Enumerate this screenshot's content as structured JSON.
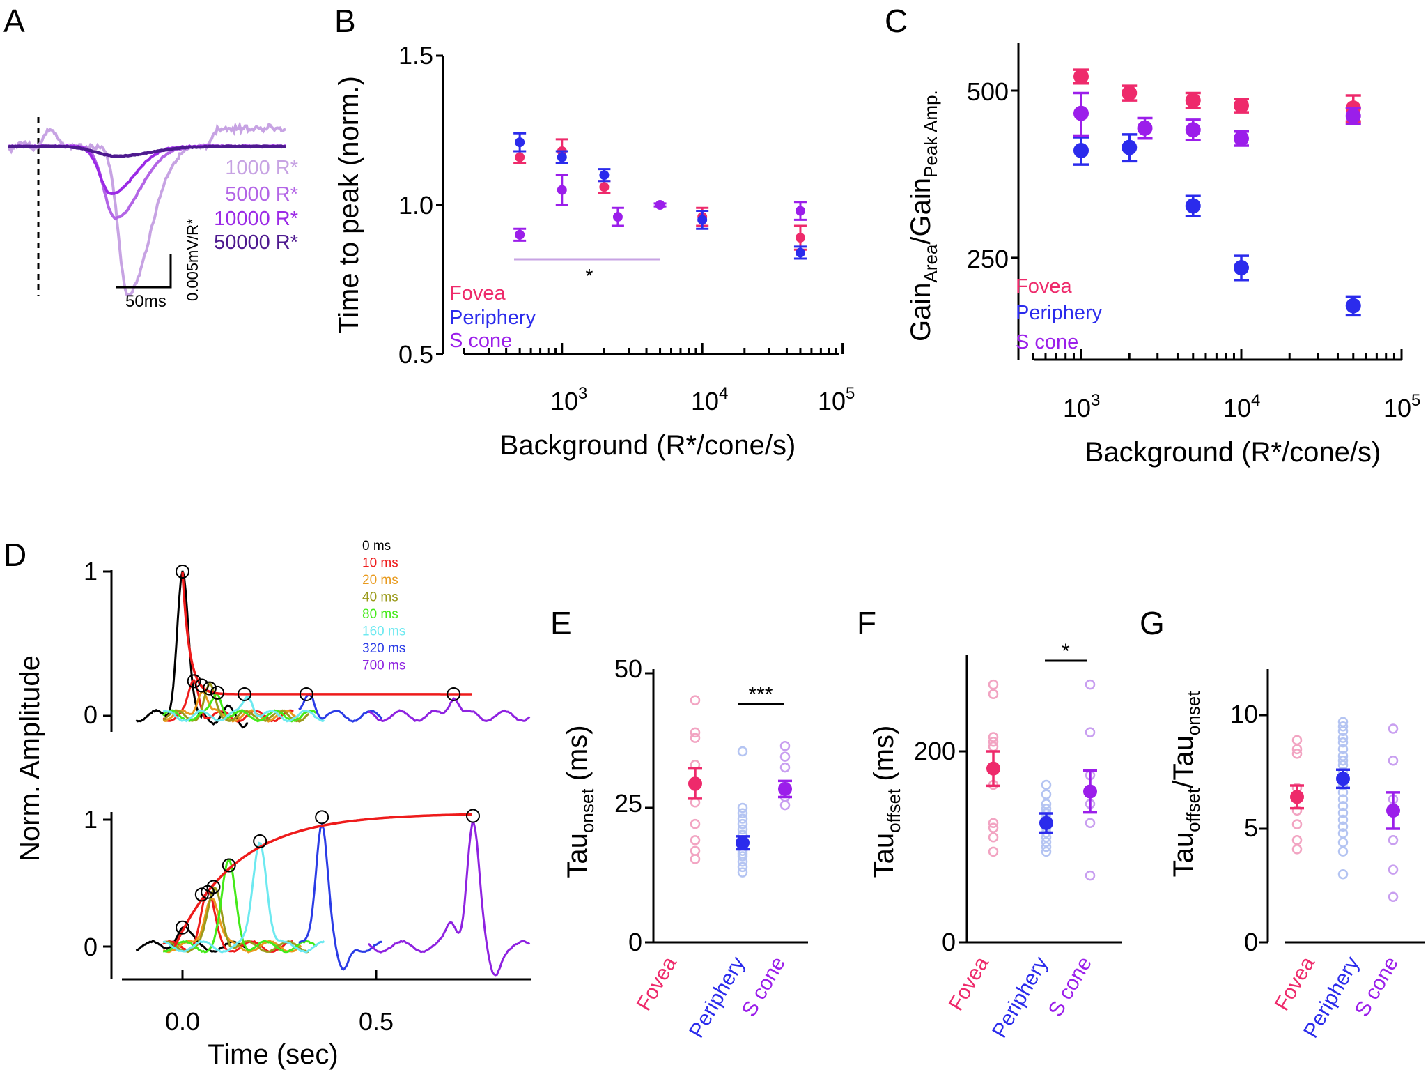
{
  "colors": {
    "fovea": "#ee2a6b",
    "periphery": "#2b2bec",
    "scone": "#9b1eea",
    "fovea_light": "#f2a4c2",
    "periphery_light": "#b4c4f2",
    "scone_light": "#c89ef0",
    "c1000": "#c7a3e3",
    "c5000": "#b365e6",
    "c10000": "#9b2ae6",
    "c50000": "#4e1a8f",
    "d0": "#000000",
    "d10": "#ee1b1b",
    "d20": "#e89a1e",
    "d40": "#9a9a1a",
    "d80": "#44ea1a",
    "d160": "#6de9f0",
    "d320": "#2b3ce6",
    "d700": "#8e22e0"
  },
  "panels": {
    "A": "A",
    "B": "B",
    "C": "C",
    "D": "D",
    "E": "E",
    "F": "F",
    "G": "G"
  },
  "panelA": {
    "legend": [
      "1000 R*",
      "5000 R*",
      "10000 R*",
      "50000 R*"
    ],
    "scale_x": "50ms",
    "scale_y": "0.005mV/R*"
  },
  "panelB": {
    "ylabel": "Time to peak (norm.)",
    "xlabel": "Background (R*/cone/s)",
    "yticks": [
      "1.5",
      "1.0",
      "0.5"
    ],
    "legend": [
      "Fovea",
      "Periphery",
      "S cone"
    ],
    "sig": "*"
  },
  "panelC": {
    "ylabel_main": "Gain",
    "ylabel_sub1": "Area",
    "ylabel_mid": "/Gain",
    "ylabel_sub2": "Peak Amp.",
    "xlabel": "Background (R*/cone/s)",
    "yticks": [
      "500",
      "250"
    ],
    "legend": [
      "Fovea",
      "Periphery",
      "S cone"
    ]
  },
  "panelD": {
    "ylabel": "Norm. Amplitude",
    "xlabel": "Time (sec)",
    "yticks": [
      "1",
      "0"
    ],
    "xticks": [
      "0.0",
      "0.5"
    ],
    "legend": [
      "0 ms",
      "10 ms",
      "20 ms",
      "40 ms",
      "80 ms",
      "160 ms",
      "320 ms",
      "700 ms"
    ]
  },
  "panelE": {
    "ylabel_main": "Tau",
    "ylabel_sub": "onset",
    "ylabel_unit": " (ms)",
    "yticks": [
      "50",
      "25",
      "0"
    ],
    "categories": [
      "Fovea",
      "Periphery",
      "S cone"
    ],
    "sig": "***"
  },
  "panelF": {
    "ylabel_main": "Tau",
    "ylabel_sub": "offset",
    "ylabel_unit": " (ms)",
    "yticks": [
      "200",
      "0"
    ],
    "categories": [
      "Fovea",
      "Periphery",
      "S cone"
    ],
    "sig": "*"
  },
  "panelG": {
    "ylabel_main": "Tau",
    "ylabel_sub1": "offset",
    "ylabel_mid": "/Tau",
    "ylabel_sub2": "onset",
    "yticks": [
      "10",
      "5",
      "0"
    ],
    "categories": [
      "Fovea",
      "Periphery",
      "S cone"
    ]
  },
  "chart_data": [
    {
      "panel": "A",
      "type": "line",
      "series": [
        {
          "name": "1000 R*"
        },
        {
          "name": "5000 R*"
        },
        {
          "name": "10000 R*"
        },
        {
          "name": "50000 R*"
        }
      ]
    },
    {
      "panel": "B",
      "type": "scatter",
      "xscale": "log",
      "xlim": [
        200,
        100000
      ],
      "ylim": [
        0.5,
        1.5
      ],
      "xlabel": "Background (R*/cone/s)",
      "ylabel": "Time to peak (norm.)",
      "series": [
        {
          "name": "Fovea",
          "points": [
            {
              "x": 500,
              "y": 1.16,
              "err": 0.02
            },
            {
              "x": 1000,
              "y": 1.18,
              "err": 0.04
            },
            {
              "x": 2000,
              "y": 1.06,
              "err": 0.02
            },
            {
              "x": 10000,
              "y": 0.96,
              "err": 0.03
            },
            {
              "x": 50000,
              "y": 0.89,
              "err": 0.04
            }
          ]
        },
        {
          "name": "Periphery",
          "points": [
            {
              "x": 500,
              "y": 1.21,
              "err": 0.03
            },
            {
              "x": 1000,
              "y": 1.16,
              "err": 0.02
            },
            {
              "x": 2000,
              "y": 1.1,
              "err": 0.02
            },
            {
              "x": 10000,
              "y": 0.95,
              "err": 0.03
            },
            {
              "x": 50000,
              "y": 0.84,
              "err": 0.02
            }
          ]
        },
        {
          "name": "S cone",
          "points": [
            {
              "x": 500,
              "y": 0.9,
              "err": 0.02
            },
            {
              "x": 1000,
              "y": 1.05,
              "err": 0.05
            },
            {
              "x": 2500,
              "y": 0.96,
              "err": 0.03
            },
            {
              "x": 5000,
              "y": 1.0,
              "err": 0.005
            },
            {
              "x": 50000,
              "y": 0.98,
              "err": 0.03
            }
          ]
        }
      ]
    },
    {
      "panel": "C",
      "type": "scatter",
      "xscale": "log",
      "xlim": [
        500,
        100000
      ],
      "ylim": [
        140,
        560
      ],
      "xlabel": "Background (R*/cone/s)",
      "series": [
        {
          "name": "Fovea",
          "points": [
            {
              "x": 1000,
              "y": 530,
              "err": 15
            },
            {
              "x": 2000,
              "y": 495,
              "err": 15
            },
            {
              "x": 5000,
              "y": 480,
              "err": 15
            },
            {
              "x": 10000,
              "y": 470,
              "err": 13
            },
            {
              "x": 50000,
              "y": 465,
              "err": 25
            }
          ]
        },
        {
          "name": "Periphery",
          "points": [
            {
              "x": 1000,
              "y": 390,
              "err": 22
            },
            {
              "x": 2000,
              "y": 395,
              "err": 22
            },
            {
              "x": 5000,
              "y": 310,
              "err": 13
            },
            {
              "x": 10000,
              "y": 240,
              "err": 12
            },
            {
              "x": 50000,
              "y": 205,
              "err": 8
            }
          ]
        },
        {
          "name": "S cone",
          "points": [
            {
              "x": 1000,
              "y": 455,
              "err": 40
            },
            {
              "x": 2500,
              "y": 428,
              "err": 18
            },
            {
              "x": 5000,
              "y": 425,
              "err": 18
            },
            {
              "x": 10000,
              "y": 410,
              "err": 12
            },
            {
              "x": 50000,
              "y": 450,
              "err": 15
            }
          ]
        }
      ]
    },
    {
      "panel": "D",
      "type": "line",
      "xlim": [
        -0.15,
        0.9
      ],
      "xlabel": "Time (sec)",
      "ylabel": "Norm. Amplitude",
      "series": [
        {
          "name": "0 ms"
        },
        {
          "name": "10 ms"
        },
        {
          "name": "20 ms"
        },
        {
          "name": "40 ms"
        },
        {
          "name": "80 ms"
        },
        {
          "name": "160 ms"
        },
        {
          "name": "320 ms"
        },
        {
          "name": "700 ms"
        }
      ]
    },
    {
      "panel": "E",
      "type": "scatter",
      "ylim": [
        0,
        50
      ],
      "categories": [
        "Fovea",
        "Periphery",
        "S cone"
      ],
      "means": [
        29.5,
        18.5,
        28.5
      ],
      "errs": [
        2.8,
        1.2,
        1.5
      ],
      "points": [
        [
          45,
          39,
          38,
          33,
          29,
          26,
          22,
          19,
          17,
          15.5
        ],
        [
          35.5,
          25,
          24,
          23,
          22,
          21,
          20,
          19,
          18,
          17,
          16.5,
          16,
          15,
          14,
          13
        ],
        [
          36.5,
          34.5,
          32.5,
          29,
          27,
          25.5
        ]
      ]
    },
    {
      "panel": "F",
      "type": "scatter",
      "ylim": [
        0,
        300
      ],
      "categories": [
        "Fovea",
        "Periphery",
        "S cone"
      ],
      "means": [
        182,
        125,
        158
      ],
      "errs": [
        18,
        10,
        22
      ],
      "points": [
        [
          270,
          260,
          215,
          210,
          205,
          180,
          165,
          125,
          120,
          110,
          95
        ],
        [
          165,
          155,
          145,
          140,
          135,
          130,
          125,
          120,
          115,
          110,
          105,
          100,
          95
        ],
        [
          270,
          220,
          175,
          145,
          125,
          70
        ]
      ]
    },
    {
      "panel": "G",
      "type": "scatter",
      "ylim": [
        0,
        12
      ],
      "categories": [
        "Fovea",
        "Periphery",
        "S cone"
      ],
      "means": [
        6.4,
        7.2,
        5.8
      ],
      "errs": [
        0.5,
        0.4,
        0.8
      ],
      "points": [
        [
          8.9,
          8.5,
          8.3,
          6.8,
          6.5,
          5.8,
          5.2,
          4.5,
          4.1
        ],
        [
          9.7,
          9.5,
          9.3,
          9.0,
          8.8,
          8.5,
          8.2,
          8.0,
          7.8,
          7.5,
          7.2,
          6.9,
          6.6,
          6.3,
          6.0,
          5.7,
          5.4,
          5.1,
          4.8,
          4.4,
          4.0,
          3.0
        ],
        [
          9.4,
          8.0,
          6.3,
          5.7,
          4.5,
          3.2,
          2.0
        ]
      ]
    }
  ]
}
